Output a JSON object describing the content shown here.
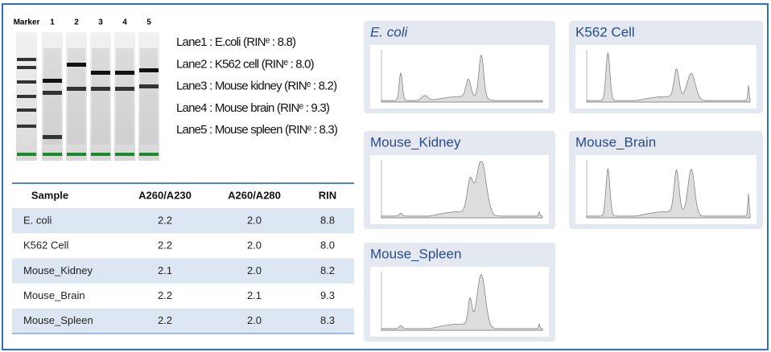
{
  "gel": {
    "lane_labels": [
      "Marker",
      "1",
      "2",
      "3",
      "4",
      "5"
    ]
  },
  "legend": [
    "Lane1 : E.coli (RINᵉ : 8.8)",
    "Lane2 : K562 cell (RINᵉ : 8.0)",
    "Lane3 : Mouse kidney (RINᵉ : 8.2)",
    "Lane4 : Mouse brain (RINᵉ : 9.3)",
    "Lane5 : Mouse spleen (RINᵉ : 8.3)"
  ],
  "table": {
    "header": [
      "Sample",
      "A260/A230",
      "A260/A280",
      "RIN"
    ],
    "rows": [
      [
        "E. coli",
        "2.2",
        "2.0",
        "8.8"
      ],
      [
        "K562 Cell",
        "2.2",
        "2.0",
        "8.0"
      ],
      [
        "Mouse_Kidney",
        "2.1",
        "2.0",
        "8.2"
      ],
      [
        "Mouse_Brain",
        "2.2",
        "2.1",
        "9.3"
      ],
      [
        "Mouse_Spleen",
        "2.2",
        "2.0",
        "8.3"
      ]
    ]
  },
  "panels": [
    {
      "title": "E. coli"
    },
    {
      "title": "K562 Cell"
    },
    {
      "title": "Mouse_Kidney"
    },
    {
      "title": "Mouse_Brain"
    },
    {
      "title": "Mouse_Spleen"
    }
  ]
}
